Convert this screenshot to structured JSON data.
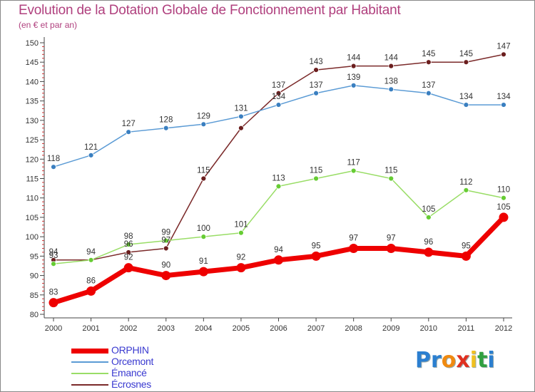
{
  "title": "Evolution de la Dotation Globale de Fonctionnement par Habitant",
  "subtitle": "(en € et par an)",
  "logo": [
    "P",
    "r",
    "o",
    "x",
    "i",
    "t",
    "i"
  ],
  "logo_colors": [
    "#2b7fd0",
    "#2b7fd0",
    "#f08a10",
    "#e03020",
    "#f0c020",
    "#30a040",
    "#2b7fd0"
  ],
  "legend": [
    {
      "name": "ORPHIN",
      "color": "#ee0000"
    },
    {
      "name": "Orcemont",
      "color": "#5b9bd5"
    },
    {
      "name": "Émancé",
      "color": "#99dd66"
    },
    {
      "name": "Écrosnes",
      "color": "#7b2a2a"
    }
  ],
  "chart_data": {
    "type": "line",
    "title": "Evolution de la Dotation Globale de Fonctionnement par Habitant",
    "subtitle": "(en € et par an)",
    "x": [
      "2000",
      "2001",
      "2002",
      "2003",
      "2004",
      "2005",
      "2006",
      "2007",
      "2008",
      "2009",
      "2010",
      "2011",
      "2012"
    ],
    "ylim": [
      80,
      150
    ],
    "yticks": [
      80,
      85,
      90,
      95,
      100,
      105,
      110,
      115,
      120,
      125,
      130,
      135,
      140,
      145,
      150
    ],
    "grid": false,
    "legend_position": "bottom-left",
    "series": [
      {
        "name": "Écrosnes",
        "color": "#7b2a2a",
        "point_color": "#6b1e1e",
        "values": [
          94,
          94,
          96,
          97,
          115,
          128,
          137,
          143,
          144,
          144,
          145,
          145,
          147
        ],
        "labels": [
          "94",
          "94",
          "96",
          "97",
          "115",
          "",
          "137",
          "143",
          "144",
          "144",
          "145",
          "145",
          "147"
        ]
      },
      {
        "name": "Émancé",
        "color": "#99dd66",
        "point_color": "#66cc33",
        "values": [
          93,
          94,
          98,
          99,
          100,
          101,
          113,
          115,
          117,
          115,
          105,
          112,
          110
        ],
        "labels": [
          "93",
          "",
          "98",
          "99",
          "100",
          "101",
          "113",
          "115",
          "117",
          "115",
          "105",
          "112",
          "110"
        ]
      },
      {
        "name": "Orcemont",
        "color": "#5b9bd5",
        "point_color": "#3a7fc0",
        "values": [
          118,
          121,
          127,
          128,
          129,
          131,
          134,
          137,
          139,
          138,
          137,
          134,
          134
        ],
        "labels": [
          "118",
          "121",
          "127",
          "128",
          "129",
          "131",
          "134",
          "137",
          "139",
          "138",
          "137",
          "134",
          "134"
        ]
      },
      {
        "name": "ORPHIN",
        "color": "#ee0000",
        "point_color": "#ee0000",
        "values": [
          83,
          86,
          92,
          90,
          91,
          92,
          94,
          95,
          97,
          97,
          96,
          95,
          105
        ],
        "labels": [
          "83",
          "86",
          "92",
          "90",
          "91",
          "92",
          "94",
          "95",
          "97",
          "97",
          "96",
          "95",
          "105"
        ]
      }
    ]
  }
}
